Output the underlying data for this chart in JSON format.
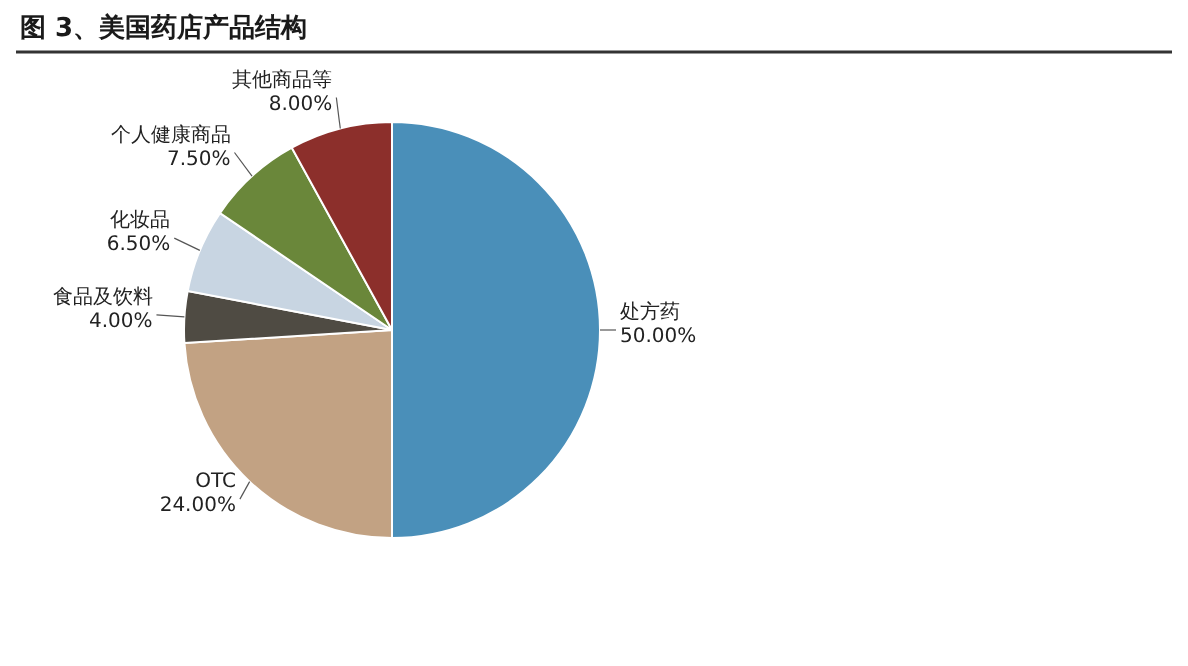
{
  "chart_data": {
    "type": "pie",
    "title": "图 3、美国药店产品结构",
    "categories": [
      "处方药",
      "OTC",
      "食品及饮料",
      "化妆品",
      "个人健康商品",
      "其他商品等"
    ],
    "values": [
      50,
      24,
      4,
      6.5,
      7.5,
      8
    ],
    "value_labels": [
      "50.00%",
      "24.00%",
      "4.00%",
      "6.50%",
      "7.50%",
      "8.00%"
    ],
    "colors": [
      "#4a8fb9",
      "#c2a283",
      "#4f4b43",
      "#c8d5e2",
      "#6a873a",
      "#8c2f2b"
    ]
  }
}
